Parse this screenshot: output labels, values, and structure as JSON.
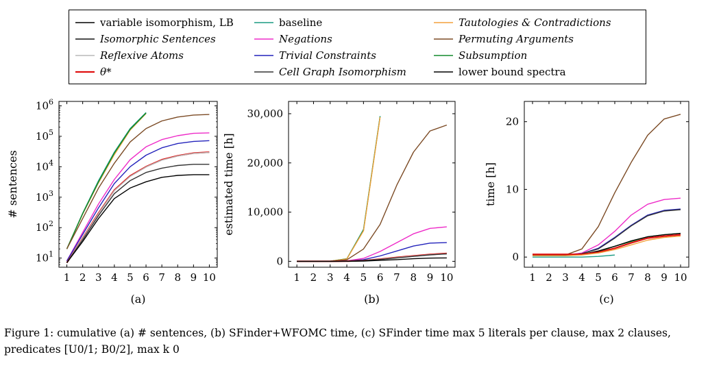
{
  "colors": {
    "variable isomorphism, LB": "#000000",
    "baseline": "#1a9a82",
    "Tautologies & Contradictions": "#f3a13b",
    "Isomorphic Sentences": "#111111",
    "Negations": "#ee2bc8",
    "Permuting Arguments": "#7b4a24",
    "Reflexive Atoms": "#b8b8b8",
    "Trivial Constraints": "#2222bb",
    "Subsumption": "#128a2c",
    "θ*": "#e01010",
    "Cell Graph Isomorphism": "#333333",
    "lower bound spectra": "#000000"
  },
  "legend": [
    {
      "label": "variable isomorphism, LB",
      "italic": false
    },
    {
      "label": "baseline",
      "italic": false
    },
    {
      "label": "Tautologies & Contradictions",
      "italic": true
    },
    {
      "label": "Isomorphic Sentences",
      "italic": true
    },
    {
      "label": "Negations",
      "italic": true
    },
    {
      "label": "Permuting Arguments",
      "italic": true
    },
    {
      "label": "Reflexive Atoms",
      "italic": true
    },
    {
      "label": "Trivial Constraints",
      "italic": true
    },
    {
      "label": "Subsumption",
      "italic": true
    },
    {
      "label": "θ*",
      "italic": true
    },
    {
      "label": "Cell Graph Isomorphism",
      "italic": true
    },
    {
      "label": "lower bound spectra",
      "italic": false
    }
  ],
  "chart_data": [
    {
      "type": "line",
      "panel_label": "(a)",
      "xlabel": "",
      "ylabel": "# sentences",
      "yscale": "log",
      "x": [
        1,
        2,
        3,
        4,
        5,
        6,
        7,
        8,
        9,
        10
      ],
      "xlim": [
        0.5,
        10.5
      ],
      "ylim": [
        5,
        1400000
      ],
      "xticks": [
        "1",
        "2",
        "3",
        "4",
        "5",
        "6",
        "7",
        "8",
        "9",
        "10"
      ],
      "yticks": [
        {
          "value": 10,
          "base": "10",
          "exp": "1"
        },
        {
          "value": 100,
          "base": "10",
          "exp": "2"
        },
        {
          "value": 1000,
          "base": "10",
          "exp": "3"
        },
        {
          "value": 10000,
          "base": "10",
          "exp": "4"
        },
        {
          "value": 100000,
          "base": "10",
          "exp": "5"
        },
        {
          "value": 1000000,
          "base": "10",
          "exp": "6"
        }
      ],
      "series": [
        {
          "name": "baseline",
          "values": [
            20,
            300,
            3500,
            30000,
            180000,
            600000,
            null,
            null,
            null,
            null
          ]
        },
        {
          "name": "Tautologies & Contradictions",
          "values": [
            20,
            280,
            3000,
            25000,
            160000,
            560000,
            null,
            null,
            null,
            null
          ]
        },
        {
          "name": "Subsumption",
          "values": [
            20,
            290,
            3200,
            28000,
            170000,
            580000,
            null,
            null,
            null,
            null
          ]
        },
        {
          "name": "Permuting Arguments",
          "values": [
            20,
            200,
            2000,
            13000,
            65000,
            180000,
            320000,
            430000,
            500000,
            520000
          ]
        },
        {
          "name": "Negations",
          "values": [
            8,
            70,
            600,
            3800,
            17000,
            45000,
            78000,
            105000,
            125000,
            130000
          ]
        },
        {
          "name": "Trivial Constraints",
          "values": [
            8,
            60,
            450,
            2800,
            10000,
            24000,
            42000,
            58000,
            68000,
            72000
          ]
        },
        {
          "name": "θ*",
          "values": [
            7,
            45,
            300,
            1700,
            5000,
            10000,
            17000,
            23000,
            28000,
            30000
          ]
        },
        {
          "name": "Reflexive Atoms",
          "values": [
            7,
            44,
            290,
            1650,
            4800,
            9800,
            16500,
            22500,
            27500,
            29500
          ]
        },
        {
          "name": "Cell Graph Isomorphism",
          "values": [
            7,
            40,
            250,
            1300,
            3500,
            6500,
            9000,
            11000,
            12000,
            12000
          ]
        },
        {
          "name": "variable isomorphism, LB",
          "values": [
            7,
            35,
            200,
            900,
            2000,
            3200,
            4500,
            5200,
            5500,
            5500
          ]
        }
      ]
    },
    {
      "type": "line",
      "panel_label": "(b)",
      "xlabel": "",
      "ylabel": "estimated time [h]",
      "x": [
        1,
        2,
        3,
        4,
        5,
        6,
        7,
        8,
        9,
        10
      ],
      "xlim": [
        0.5,
        10.5
      ],
      "ylim": [
        -1200,
        32500
      ],
      "xticks": [
        "1",
        "2",
        "3",
        "4",
        "5",
        "6",
        "7",
        "8",
        "9",
        "10"
      ],
      "yticks": [
        {
          "value": 0,
          "label": "0"
        },
        {
          "value": 10000,
          "label": "10,000"
        },
        {
          "value": 20000,
          "label": "20,000"
        },
        {
          "value": 30000,
          "label": "30,000"
        }
      ],
      "series": [
        {
          "name": "baseline",
          "values": [
            0,
            0,
            30,
            500,
            6500,
            29500,
            null,
            null,
            null,
            null
          ]
        },
        {
          "name": "Subsumption",
          "values": [
            0,
            0,
            30,
            520,
            6300,
            29400,
            null,
            null,
            null,
            null
          ]
        },
        {
          "name": "Tautologies & Contradictions",
          "values": [
            0,
            0,
            30,
            480,
            6200,
            29300,
            null,
            null,
            null,
            null
          ]
        },
        {
          "name": "Permuting Arguments",
          "values": [
            0,
            0,
            10,
            300,
            2500,
            7500,
            15500,
            22200,
            26500,
            27700
          ]
        },
        {
          "name": "Negations",
          "values": [
            0,
            0,
            5,
            80,
            600,
            2000,
            3800,
            5600,
            6700,
            7000
          ]
        },
        {
          "name": "Trivial Constraints",
          "values": [
            0,
            0,
            5,
            50,
            350,
            1100,
            2100,
            3100,
            3700,
            3800
          ]
        },
        {
          "name": "θ*",
          "values": [
            0,
            0,
            2,
            20,
            150,
            450,
            800,
            1100,
            1400,
            1600
          ]
        },
        {
          "name": "Reflexive Atoms",
          "values": [
            0,
            0,
            2,
            18,
            140,
            420,
            760,
            1050,
            1350,
            1550
          ]
        },
        {
          "name": "Cell Graph Isomorphism",
          "values": [
            0,
            0,
            2,
            15,
            120,
            380,
            700,
            1000,
            1300,
            1500
          ]
        },
        {
          "name": "lower bound spectra",
          "values": [
            0,
            0,
            1,
            10,
            60,
            200,
            350,
            520,
            650,
            700
          ]
        }
      ]
    },
    {
      "type": "line",
      "panel_label": "(c)",
      "xlabel": "",
      "ylabel": "time [h]",
      "x": [
        1,
        2,
        3,
        4,
        5,
        6,
        7,
        8,
        9,
        10
      ],
      "xlim": [
        0.5,
        10.5
      ],
      "ylim": [
        -1.5,
        23
      ],
      "xticks": [
        "1",
        "2",
        "3",
        "4",
        "5",
        "6",
        "7",
        "8",
        "9",
        "10"
      ],
      "yticks": [
        {
          "value": 0,
          "label": "0"
        },
        {
          "value": 10,
          "label": "10"
        },
        {
          "value": 20,
          "label": "20"
        }
      ],
      "series": [
        {
          "name": "Permuting Arguments",
          "values": [
            0.3,
            0.3,
            0.3,
            1.2,
            4.5,
            9.5,
            14,
            18,
            20.4,
            21.1
          ]
        },
        {
          "name": "Negations",
          "values": [
            0.3,
            0.3,
            0.3,
            0.6,
            1.8,
            3.8,
            6.2,
            7.8,
            8.5,
            8.7
          ]
        },
        {
          "name": "Trivial Constraints",
          "values": [
            0.3,
            0.3,
            0.3,
            0.5,
            1.3,
            2.9,
            4.7,
            6.2,
            6.9,
            7.1
          ]
        },
        {
          "name": "Cell Graph Isomorphism",
          "values": [
            0.3,
            0.3,
            0.3,
            0.5,
            1.2,
            2.8,
            4.6,
            6.1,
            6.8,
            7.0
          ]
        },
        {
          "name": "Subsumption",
          "values": [
            0.3,
            0.3,
            0.3,
            0.4,
            0.8,
            1.6,
            2.3,
            3.0,
            3.3,
            3.5
          ]
        },
        {
          "name": "lower bound spectra",
          "values": [
            0.3,
            0.3,
            0.3,
            0.4,
            0.9,
            1.6,
            2.4,
            3.0,
            3.3,
            3.5
          ]
        },
        {
          "name": "θ*",
          "values": [
            0.4,
            0.4,
            0.4,
            0.4,
            0.7,
            1.3,
            2.1,
            2.8,
            3.1,
            3.3
          ]
        },
        {
          "name": "Tautologies & Contradictions",
          "values": [
            0.2,
            0.2,
            0.2,
            0.3,
            0.6,
            1.1,
            1.8,
            2.5,
            2.9,
            3.1
          ]
        },
        {
          "name": "baseline",
          "values": [
            0.0,
            0.0,
            0.0,
            0.0,
            0.1,
            0.3,
            null,
            null,
            null,
            null
          ]
        }
      ]
    }
  ],
  "caption": "Figure 1: cumulative (a) # sentences, (b) SFinder+WFOMC time, (c) SFinder time max 5 literals per clause, max 2 clauses, predicates [U0/1; B0/2], max k 0"
}
